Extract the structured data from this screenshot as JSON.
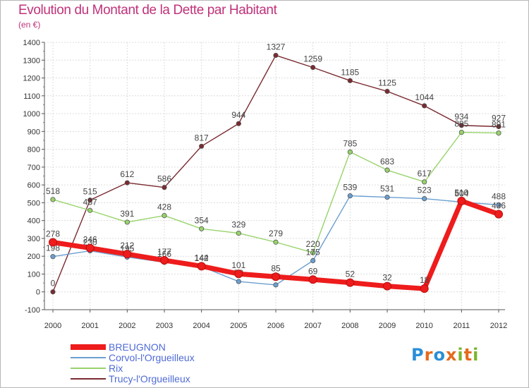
{
  "header": {
    "title": "Evolution du Montant de la Dette par Habitant",
    "subtitle": "(en €)"
  },
  "logo": {
    "letters": [
      "P",
      "r",
      "o",
      "x",
      "i",
      "t",
      "i"
    ],
    "colors": [
      "#2a8fd6",
      "#e46b1e",
      "#2a8fd6",
      "#e46b1e",
      "#7ab52c",
      "#e46b1e",
      "#7ab52c"
    ]
  },
  "chart_data": {
    "type": "line",
    "x": [
      "2000",
      "2001",
      "2002",
      "2003",
      "2004",
      "2005",
      "2006",
      "2007",
      "2008",
      "2009",
      "2010",
      "2011",
      "2012"
    ],
    "ylim": [
      -100,
      1400
    ],
    "yticks": [
      "-100",
      "0",
      "100",
      "200",
      "300",
      "400",
      "500",
      "600",
      "700",
      "800",
      "900",
      "1000",
      "1100",
      "1200",
      "1300",
      "1400"
    ],
    "grid": true,
    "legend_position": "bottom-left",
    "series": [
      {
        "name": "Trucy-l'Orgueilleux",
        "color": "#7a2a30",
        "values": [
          0,
          515,
          612,
          586,
          817,
          944,
          1327,
          1259,
          1185,
          1125,
          1044,
          934,
          927
        ],
        "labels": [
          "0",
          "515",
          "612",
          "586",
          "817",
          "944",
          "1327",
          "1259",
          "1185",
          "1125",
          "1044",
          "934",
          "927"
        ]
      },
      {
        "name": "Rix",
        "color": "#97d36b",
        "values": [
          518,
          457,
          391,
          428,
          354,
          329,
          279,
          220,
          785,
          683,
          617,
          895,
          891
        ],
        "labels": [
          "518",
          "457",
          "391",
          "428",
          "354",
          "329",
          "279",
          "220",
          "785",
          "683",
          "617",
          "895",
          "891"
        ]
      },
      {
        "name": "Corvol-l'Orgueilleux",
        "color": "#6b9fd0",
        "values": [
          198,
          230,
          195,
          166,
          142,
          58,
          39,
          175,
          539,
          531,
          523,
          504,
          488
        ],
        "labels": [
          "198",
          "230",
          "195",
          "166",
          "142",
          "58",
          "39",
          "175",
          "539",
          "531",
          "523",
          "504",
          "488"
        ]
      },
      {
        "name": "BREUGNON",
        "color": "#ee1c1c",
        "values": [
          278,
          246,
          212,
          177,
          144,
          101,
          85,
          69,
          52,
          32,
          18,
          510,
          436
        ],
        "labels": [
          "278",
          "246",
          "212",
          "177",
          "144",
          "101",
          "85",
          "69",
          "52",
          "32",
          "18",
          "510",
          "436"
        ]
      }
    ],
    "legend": [
      {
        "name": "BREUGNON",
        "color": "#ee1c1c"
      },
      {
        "name": "Corvol-l'Orgueilleux",
        "color": "#6b9fd0"
      },
      {
        "name": "Rix",
        "color": "#97d36b"
      },
      {
        "name": "Trucy-l'Orgueilleux",
        "color": "#7a2a30"
      }
    ]
  }
}
